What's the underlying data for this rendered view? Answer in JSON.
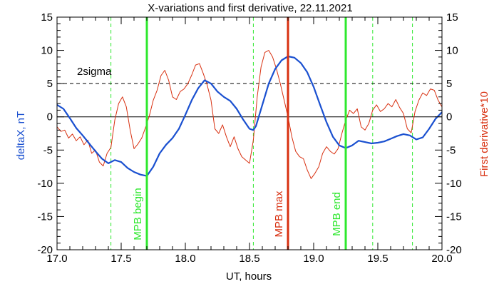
{
  "chart_data": {
    "type": "line",
    "title": "X-variations and first derivative, 22.11.2021",
    "xlabel": "UT, hours",
    "ylabel_left": "deltaX, nT",
    "ylabel_right": "First derivative*10",
    "xlim": [
      17.0,
      20.0
    ],
    "ylim_left": [
      -20,
      15
    ],
    "ylim_right": [
      -20,
      15
    ],
    "xticks": [
      "17.0",
      "17.5",
      "18.0",
      "18.5",
      "19.0",
      "19.5",
      "20.0"
    ],
    "yticks_left": [
      "-20",
      "-15",
      "-10",
      "-5",
      "0",
      "5",
      "10",
      "15"
    ],
    "yticks_right": [
      "-20",
      "-15",
      "-10",
      "-5",
      "0",
      "5",
      "10",
      "15"
    ],
    "sigma_level": 5,
    "sigma_label": "2sigma",
    "zero_level": 0,
    "colors": {
      "deltaX": "#1a50d0",
      "derivative": "#d83010",
      "green_marker": "#2ee82e",
      "red_marker": "#d83010",
      "left_label": "#1a50d0",
      "right_label": "#d83010",
      "axes": "#000000"
    },
    "vertical_markers": [
      {
        "x": 17.7,
        "label": "MPB begin",
        "style": "solid",
        "color": "#2ee82e"
      },
      {
        "x": 18.8,
        "label": "MPB max",
        "style": "solid",
        "color": "#d83010"
      },
      {
        "x": 19.25,
        "label": "MPB end",
        "style": "solid",
        "color": "#2ee82e"
      }
    ],
    "dashed_markers": [
      17.42,
      18.53,
      19.46,
      19.77
    ],
    "series": [
      {
        "name": "deltaX",
        "axis": "left",
        "color": "#1a50d0",
        "x": [
          17.0,
          17.05,
          17.1,
          17.15,
          17.2,
          17.25,
          17.3,
          17.35,
          17.4,
          17.45,
          17.5,
          17.55,
          17.6,
          17.65,
          17.7,
          17.75,
          17.8,
          17.85,
          17.9,
          17.95,
          18.0,
          18.05,
          18.1,
          18.15,
          18.2,
          18.25,
          18.3,
          18.35,
          18.4,
          18.45,
          18.5,
          18.53,
          18.55,
          18.6,
          18.65,
          18.7,
          18.75,
          18.8,
          18.85,
          18.9,
          18.95,
          19.0,
          19.05,
          19.1,
          19.15,
          19.2,
          19.25,
          19.3,
          19.35,
          19.4,
          19.45,
          19.5,
          19.55,
          19.6,
          19.65,
          19.7,
          19.75,
          19.8,
          19.85,
          19.9,
          19.95,
          20.0
        ],
        "y": [
          1.8,
          1.2,
          -0.2,
          -1.7,
          -2.8,
          -4.0,
          -5.2,
          -6.3,
          -7.0,
          -6.5,
          -6.8,
          -7.7,
          -8.3,
          -8.7,
          -8.9,
          -7.5,
          -5.5,
          -4.2,
          -3.2,
          -1.8,
          0.3,
          2.5,
          4.3,
          5.5,
          5.0,
          3.8,
          3.0,
          2.4,
          1.2,
          -0.4,
          -1.8,
          -2.0,
          -1.4,
          1.8,
          5.0,
          7.2,
          8.5,
          9.1,
          8.9,
          8.1,
          6.7,
          4.5,
          1.8,
          -0.8,
          -3.0,
          -4.3,
          -4.7,
          -4.3,
          -3.6,
          -3.8,
          -4.0,
          -3.9,
          -3.7,
          -3.3,
          -2.9,
          -2.6,
          -2.8,
          -3.4,
          -3.1,
          -1.8,
          -0.3,
          0.7
        ]
      },
      {
        "name": "First derivative*10",
        "axis": "right",
        "color": "#d83010",
        "x": [
          17.0,
          17.03,
          17.06,
          17.09,
          17.12,
          17.15,
          17.18,
          17.21,
          17.24,
          17.27,
          17.3,
          17.33,
          17.36,
          17.39,
          17.42,
          17.45,
          17.48,
          17.51,
          17.54,
          17.57,
          17.6,
          17.63,
          17.66,
          17.69,
          17.72,
          17.75,
          17.78,
          17.81,
          17.84,
          17.87,
          17.9,
          17.93,
          17.96,
          17.99,
          18.02,
          18.05,
          18.08,
          18.11,
          18.14,
          18.17,
          18.2,
          18.23,
          18.26,
          18.29,
          18.32,
          18.35,
          18.38,
          18.41,
          18.44,
          18.47,
          18.5,
          18.53,
          18.56,
          18.59,
          18.62,
          18.65,
          18.68,
          18.71,
          18.74,
          18.77,
          18.8,
          18.83,
          18.86,
          18.89,
          18.92,
          18.95,
          18.98,
          19.01,
          19.04,
          19.07,
          19.1,
          19.13,
          19.16,
          19.19,
          19.22,
          19.25,
          19.28,
          19.31,
          19.34,
          19.37,
          19.4,
          19.43,
          19.46,
          19.49,
          19.52,
          19.55,
          19.58,
          19.61,
          19.64,
          19.67,
          19.7,
          19.73,
          19.76,
          19.79,
          19.82,
          19.85,
          19.88,
          19.91,
          19.94,
          19.97,
          20.0
        ],
        "y": [
          -1.5,
          -2.2,
          -2.0,
          -3.2,
          -2.6,
          -3.6,
          -3.0,
          -4.2,
          -3.5,
          -5.5,
          -5.0,
          -6.8,
          -7.4,
          -5.5,
          -4.6,
          -0.5,
          2.0,
          3.0,
          1.5,
          -2.0,
          -4.8,
          -4.1,
          -3.2,
          -1.6,
          0.2,
          2.5,
          4.0,
          6.2,
          7.0,
          5.5,
          3.0,
          2.6,
          3.8,
          4.2,
          5.0,
          6.3,
          7.8,
          8.0,
          6.5,
          4.8,
          2.5,
          -1.8,
          -2.5,
          -1.2,
          -3.0,
          -4.5,
          -3.0,
          -4.8,
          -6.0,
          -6.5,
          -7.0,
          -3.5,
          3.0,
          7.5,
          9.7,
          10.0,
          9.0,
          7.2,
          5.0,
          2.5,
          0.0,
          -3.0,
          -5.2,
          -6.0,
          -6.3,
          -8.0,
          -9.3,
          -8.5,
          -7.5,
          -5.5,
          -4.5,
          -5.2,
          -5.6,
          -4.8,
          -2.5,
          -0.5,
          1.0,
          0.5,
          1.2,
          -1.5,
          -2.0,
          -1.0,
          1.0,
          1.8,
          0.8,
          1.2,
          2.0,
          1.5,
          2.6,
          1.4,
          0.5,
          -1.8,
          -2.4,
          0.8,
          2.5,
          3.6,
          3.2,
          4.2,
          4.0,
          2.5,
          1.5
        ]
      }
    ]
  }
}
